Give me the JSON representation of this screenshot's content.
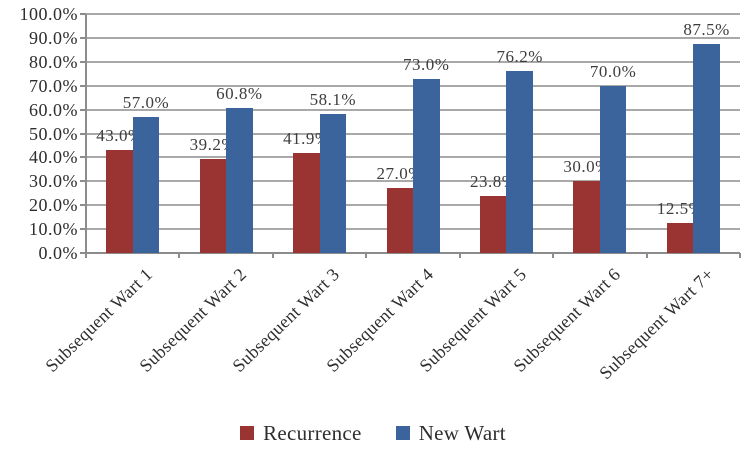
{
  "chart_data": {
    "type": "bar",
    "title": "",
    "xlabel": "",
    "ylabel": "",
    "categories": [
      "Subsequent Wart 1",
      "Subsequent Wart 2",
      "Subsequent Wart 3",
      "Subsequent Wart 4",
      "Subsequent Wart 5",
      "Subsequent Wart 6",
      "Subsequent Wart 7+"
    ],
    "series": [
      {
        "name": "Recurrence",
        "color": "#993432",
        "values": [
          43.0,
          39.2,
          41.9,
          27.0,
          23.8,
          30.0,
          12.5
        ],
        "data_labels": [
          "43.0%",
          "39.2%",
          "41.9%",
          "27.0%",
          "23.8%",
          "30.0%",
          "12.5%"
        ]
      },
      {
        "name": "New Wart",
        "color": "#3A649B",
        "values": [
          57.0,
          60.8,
          58.1,
          73.0,
          76.2,
          70.0,
          87.5
        ],
        "data_labels": [
          "57.0%",
          "60.8%",
          "58.1%",
          "73.0%",
          "76.2%",
          "70.0%",
          "87.5%"
        ]
      }
    ],
    "ylim": [
      0,
      100
    ],
    "ytick_step": 10,
    "ytick_labels": [
      "0.0%",
      "10.0%",
      "20.0%",
      "30.0%",
      "40.0%",
      "50.0%",
      "60.0%",
      "70.0%",
      "80.0%",
      "90.0%",
      "100.0%"
    ],
    "grid": true,
    "legend_position": "bottom",
    "colors": {
      "gridline": "#A9A9A9",
      "axis": "#8C8C8C",
      "data_label_text": "#3d3d3d",
      "tick_label_text": "#2e2e2e",
      "background": "#ffffff"
    }
  }
}
